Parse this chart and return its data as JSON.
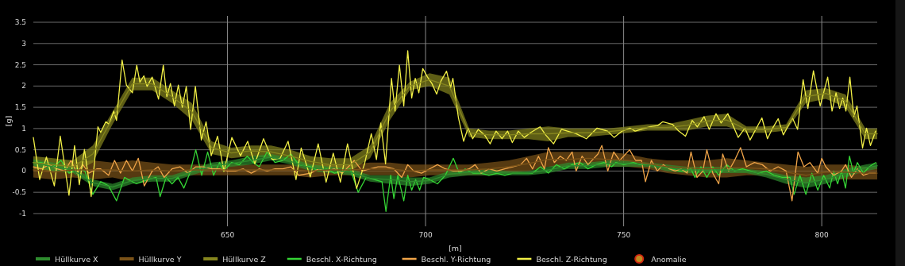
{
  "chart_data": {
    "type": "line",
    "xlabel": "[m]",
    "ylabel": "[g]",
    "xlim": [
      601,
      814
    ],
    "ylim": [
      -1.3,
      3.65
    ],
    "xticks": [
      650,
      700,
      750,
      800
    ],
    "yticks": [
      -1,
      -0.5,
      0,
      0.5,
      1,
      1.5,
      2,
      2.5,
      3,
      3.5
    ],
    "grid": true,
    "legend": "bottom",
    "series": [
      {
        "name": "Hüllkurve X",
        "color": "#2e8b2e",
        "x": [
          601,
          606,
          611,
          616,
          621,
          626,
          631,
          636,
          641,
          646,
          651,
          656,
          661,
          666,
          671,
          676,
          681,
          686,
          691,
          696,
          701,
          706,
          711,
          716,
          721,
          726,
          731,
          736,
          741,
          746,
          751,
          756,
          761,
          766,
          771,
          776,
          781,
          786,
          791,
          796,
          801,
          806,
          811,
          814
        ],
        "values": [
          0.2,
          0.1,
          0.025,
          -0.275,
          -0.375,
          -0.225,
          -0.175,
          -0.175,
          -0.025,
          0.125,
          0.175,
          0.25,
          0.325,
          0.225,
          0.075,
          0.025,
          -0.025,
          -0.175,
          -0.2,
          -0.25,
          -0.225,
          -0.075,
          -0.025,
          -0.025,
          -0.05,
          -0.05,
          0.025,
          0.125,
          0.125,
          0.175,
          0.175,
          0.15,
          0.075,
          0.025,
          0.025,
          0.025,
          0,
          -0.075,
          -0.2,
          -0.275,
          -0.2,
          -0.05,
          0.075,
          0.125
        ],
        "lower": [
          0.12,
          0,
          -0.05,
          -0.35,
          -0.45,
          -0.3,
          -0.25,
          -0.25,
          -0.1,
          0.05,
          0.1,
          0.15,
          0.25,
          0.15,
          0,
          -0.05,
          -0.1,
          -0.25,
          -0.3,
          -0.35,
          -0.3,
          -0.15,
          -0.1,
          -0.1,
          -0.1,
          -0.1,
          -0.05,
          0.05,
          0.05,
          0.1,
          0.1,
          0.1,
          0,
          -0.05,
          -0.05,
          -0.05,
          -0.05,
          -0.15,
          -0.3,
          -0.4,
          -0.3,
          -0.15,
          0,
          0.05
        ],
        "upper": [
          0.28,
          0.2,
          0.1,
          -0.2,
          -0.3,
          -0.15,
          -0.1,
          -0.1,
          0.05,
          0.2,
          0.25,
          0.35,
          0.4,
          0.3,
          0.15,
          0.1,
          0.05,
          -0.1,
          -0.1,
          -0.15,
          -0.15,
          0,
          0.05,
          0.05,
          0,
          0,
          0.1,
          0.2,
          0.2,
          0.25,
          0.25,
          0.2,
          0.15,
          0.1,
          0.1,
          0.1,
          0.05,
          0,
          -0.1,
          -0.15,
          -0.1,
          0.05,
          0.15,
          0.2
        ]
      },
      {
        "name": "Hüllkurve Y",
        "color": "#7a5218",
        "x": [
          601,
          606,
          611,
          616,
          621,
          626,
          631,
          636,
          641,
          646,
          651,
          656,
          661,
          666,
          671,
          676,
          681,
          686,
          691,
          696,
          701,
          706,
          711,
          716,
          721,
          726,
          731,
          736,
          741,
          746,
          751,
          756,
          761,
          766,
          771,
          776,
          781,
          786,
          791,
          796,
          801,
          806,
          811,
          814
        ],
        "values": [
          0.025,
          -0.025,
          0.025,
          0.025,
          0.025,
          0,
          0.025,
          0,
          0.025,
          0.025,
          0.025,
          0.025,
          0.025,
          0.025,
          0,
          0.025,
          0.025,
          0.05,
          0.05,
          0,
          0.025,
          0.025,
          0.025,
          0.05,
          0.1,
          0.175,
          0.275,
          0.275,
          0.3,
          0.275,
          0.25,
          0.175,
          0.1,
          0.075,
          0.05,
          0.075,
          0.075,
          0.05,
          -0.025,
          -0.1,
          -0.025,
          -0.025,
          -0.05,
          -0.05
        ],
        "lower": [
          -0.15,
          -0.2,
          -0.15,
          -0.2,
          -0.15,
          -0.25,
          -0.15,
          -0.15,
          -0.1,
          -0.1,
          -0.1,
          -0.1,
          -0.1,
          -0.1,
          -0.15,
          -0.1,
          -0.1,
          -0.1,
          -0.1,
          -0.15,
          -0.1,
          -0.1,
          -0.1,
          -0.1,
          -0.05,
          0,
          0.1,
          0.1,
          0.15,
          0.1,
          0.1,
          0.05,
          -0.05,
          -0.1,
          -0.15,
          -0.15,
          -0.1,
          -0.1,
          -0.2,
          -0.3,
          -0.2,
          -0.2,
          -0.2,
          -0.2
        ],
        "upper": [
          0.2,
          0.15,
          0.2,
          0.25,
          0.2,
          0.25,
          0.2,
          0.15,
          0.15,
          0.15,
          0.15,
          0.15,
          0.15,
          0.15,
          0.15,
          0.15,
          0.15,
          0.2,
          0.2,
          0.15,
          0.15,
          0.15,
          0.15,
          0.2,
          0.25,
          0.35,
          0.45,
          0.45,
          0.45,
          0.45,
          0.4,
          0.3,
          0.25,
          0.25,
          0.25,
          0.3,
          0.25,
          0.2,
          0.15,
          0.1,
          0.15,
          0.15,
          0.1,
          0.1
        ]
      },
      {
        "name": "Hüllkurve Z",
        "color": "#85851e",
        "x": [
          601,
          606,
          611,
          616,
          621,
          626,
          631,
          636,
          641,
          646,
          651,
          656,
          661,
          666,
          671,
          676,
          681,
          686,
          691,
          696,
          701,
          706,
          711,
          716,
          721,
          726,
          731,
          736,
          741,
          746,
          751,
          756,
          761,
          766,
          771,
          776,
          781,
          786,
          791,
          796,
          801,
          806,
          811,
          814
        ],
        "values": [
          0.2,
          0.15,
          0.1,
          0.4,
          1.25,
          2.05,
          2.05,
          1.75,
          1.4,
          0.55,
          0.425,
          0.475,
          0.45,
          0.35,
          0.225,
          0.15,
          0.15,
          0.45,
          1.4,
          2,
          2.15,
          2,
          0.9,
          0.85,
          0.85,
          0.875,
          0.875,
          0.9,
          0.9,
          0.925,
          0.975,
          1.025,
          1.025,
          1.075,
          1.175,
          1.2,
          0.975,
          0.975,
          1.025,
          1.75,
          1.825,
          1.65,
          0.875,
          0.875
        ],
        "lower": [
          0.05,
          0,
          -0.05,
          0.2,
          1.1,
          1.9,
          1.9,
          1.6,
          1.2,
          0.4,
          0.3,
          0.35,
          0.3,
          0.2,
          0.1,
          0,
          0,
          0.3,
          1.2,
          1.9,
          2,
          1.8,
          0.8,
          0.75,
          0.75,
          0.75,
          0.7,
          0.8,
          0.8,
          0.85,
          0.9,
          0.95,
          0.95,
          0.95,
          1.05,
          1.05,
          0.9,
          0.9,
          0.95,
          1.6,
          1.7,
          1.5,
          0.75,
          0.75
        ],
        "upper": [
          0.35,
          0.3,
          0.25,
          0.6,
          1.4,
          2.2,
          2.2,
          1.9,
          1.6,
          0.7,
          0.55,
          0.6,
          0.6,
          0.5,
          0.35,
          0.3,
          0.3,
          0.6,
          1.6,
          2.1,
          2.3,
          2.2,
          1,
          0.95,
          0.95,
          1,
          1.05,
          1,
          1,
          1,
          1.05,
          1.1,
          1.1,
          1.2,
          1.3,
          1.35,
          1.05,
          1.05,
          1.1,
          1.9,
          1.95,
          1.8,
          1,
          1
        ]
      },
      {
        "name": "Beschl. X-Richtung",
        "color": "#35d535",
        "x": [
          601,
          603,
          606,
          608,
          610,
          612,
          614,
          616,
          618,
          620,
          622,
          624,
          627,
          630,
          632,
          633,
          634.5,
          636,
          637.5,
          639,
          640.5,
          642,
          643.5,
          645,
          646.5,
          648,
          649,
          651,
          653,
          655,
          656.5,
          658,
          660,
          662,
          664,
          666,
          668,
          671,
          673,
          675,
          677,
          679,
          681,
          683,
          685,
          687,
          689,
          690,
          691.2,
          692,
          693,
          694.5,
          695.5,
          696.5,
          697.5,
          698.5,
          699.5,
          701,
          703,
          705,
          707,
          708.5,
          710,
          712,
          714,
          716,
          718,
          720,
          722,
          725,
          727,
          729,
          731,
          733,
          735,
          737,
          739,
          741,
          743,
          745,
          747,
          748,
          750,
          752.5,
          754,
          756,
          758,
          760,
          762,
          764,
          765.6,
          767,
          768,
          769.5,
          771,
          772.5,
          774,
          776,
          778,
          780,
          782,
          784,
          786,
          788,
          790,
          792,
          793,
          794.5,
          796,
          797.5,
          799,
          800.5,
          802,
          803,
          804,
          805,
          806,
          807,
          808,
          809,
          810.5,
          812,
          813.6
        ],
        "values": [
          0.2,
          0.2,
          0.1,
          0.25,
          -0.05,
          0.05,
          0,
          -0.55,
          -0.25,
          -0.35,
          -0.7,
          -0.15,
          -0.3,
          -0.2,
          -0.15,
          -0.6,
          -0.15,
          -0.3,
          -0.15,
          -0.4,
          -0.05,
          0.5,
          -0.1,
          0.45,
          -0.1,
          0.2,
          0,
          0.2,
          0.15,
          0.35,
          0.2,
          0.1,
          0.45,
          0.2,
          0.25,
          0.4,
          0.15,
          0.1,
          0,
          0.05,
          -0.05,
          0,
          0.05,
          -0.5,
          -0.15,
          -0.2,
          -0.25,
          -0.95,
          -0.1,
          -0.65,
          -0.1,
          -0.7,
          -0.1,
          -0.45,
          -0.2,
          -0.45,
          -0.15,
          -0.2,
          -0.3,
          -0.1,
          0.3,
          -0.05,
          0.05,
          -0.05,
          -0.05,
          -0.1,
          -0.05,
          -0.1,
          -0.05,
          -0.05,
          -0.05,
          0.1,
          -0.05,
          0.15,
          0.05,
          0.15,
          0.2,
          0.05,
          0.15,
          0.2,
          0.1,
          0.2,
          0.15,
          0.2,
          0.15,
          0.15,
          0.15,
          0.1,
          0.05,
          0,
          0,
          0.05,
          -0.15,
          0.1,
          -0.15,
          0.1,
          -0.1,
          0.15,
          0,
          0.05,
          0,
          -0.05,
          0,
          -0.1,
          -0.15,
          -0.15,
          -0.55,
          -0.1,
          -0.55,
          -0.05,
          -0.45,
          -0.1,
          -0.4,
          0,
          -0.3,
          0,
          -0.4,
          0.35,
          -0.05,
          0.2,
          -0.05,
          0.1,
          0.2
        ]
      },
      {
        "name": "Beschl. Y-Richtung",
        "color": "#f0a448",
        "x": [
          601,
          603,
          605,
          607,
          609,
          610.5,
          612,
          613.5,
          615,
          617,
          618,
          620,
          621.5,
          623,
          624.5,
          626,
          627.5,
          629,
          631,
          632.5,
          634,
          636,
          638,
          640,
          642,
          644,
          646,
          648,
          650,
          652,
          654,
          656,
          658,
          660,
          662,
          664,
          666,
          668,
          671,
          673,
          675,
          677,
          679,
          682,
          684,
          686,
          688,
          690,
          692,
          694,
          695.5,
          697,
          699,
          701,
          703,
          705,
          707,
          709,
          711,
          712.5,
          714,
          716,
          718,
          720,
          722,
          724,
          725.5,
          727,
          728.5,
          730,
          731,
          732.5,
          734,
          735.5,
          737,
          738,
          739.5,
          741,
          742.5,
          743.5,
          744.5,
          746,
          747.5,
          749,
          751.5,
          753,
          754.5,
          755.5,
          757,
          758.5,
          760,
          761.5,
          763,
          764.5,
          766,
          767,
          768.5,
          770,
          771,
          772.5,
          774,
          775,
          776.5,
          778,
          779.5,
          781,
          783,
          785,
          787,
          789,
          791,
          792.5,
          794,
          795.5,
          797,
          799,
          800,
          801,
          803,
          805,
          806,
          807.5,
          809,
          810.5,
          812,
          813.6
        ],
        "values": [
          0.1,
          0.05,
          0.15,
          0.05,
          0,
          0.25,
          -0.05,
          0.15,
          -0.05,
          0.05,
          0.05,
          -0.1,
          0.25,
          -0.05,
          0.25,
          0,
          0.3,
          -0.35,
          0,
          0.1,
          -0.15,
          0.05,
          0.1,
          -0.05,
          0.1,
          0.1,
          0.05,
          0.05,
          0,
          0,
          0.05,
          -0.05,
          0.05,
          0,
          0.05,
          0.05,
          0.1,
          -0.1,
          -0.05,
          0.05,
          0,
          0.05,
          -0.05,
          0.25,
          0,
          0.05,
          0.1,
          0.1,
          0.05,
          -0.15,
          0.15,
          0,
          -0.05,
          0.05,
          0.15,
          0.05,
          0,
          0,
          0.05,
          0.15,
          -0.05,
          0.05,
          0,
          0.05,
          0.1,
          0.15,
          0.3,
          0.05,
          0.35,
          0.05,
          0.55,
          0.2,
          0.35,
          0.25,
          0.45,
          0,
          0.35,
          0.15,
          0.3,
          0.4,
          0.6,
          0,
          0.45,
          0.25,
          0.5,
          0.25,
          0.25,
          -0.25,
          0.25,
          0,
          0.15,
          0.05,
          0,
          0.05,
          -0.05,
          0.45,
          -0.15,
          0,
          0.5,
          -0.05,
          -0.3,
          0.4,
          0,
          0.25,
          0.55,
          0.1,
          0.2,
          0.15,
          0,
          0.1,
          0,
          -0.7,
          0.45,
          0.1,
          0.2,
          -0.05,
          0.3,
          0.1,
          -0.1,
          0,
          0.15,
          -0.15,
          0.05,
          -0.1,
          -0.05,
          -0.05
        ]
      },
      {
        "name": "Beschl. Z-Richtung",
        "color": "#f2f046",
        "x": [
          601,
          602.6,
          604.3,
          606.3,
          607.8,
          610,
          611.4,
          612.6,
          613.9,
          615.6,
          617.3,
          618,
          619.3,
          620.1,
          621.3,
          622,
          623.4,
          624.5,
          626,
          627.1,
          627.9,
          628.9,
          629.7,
          631,
          632.6,
          633.8,
          634.7,
          635.6,
          636.6,
          637.6,
          638.6,
          639.6,
          640.7,
          641.9,
          643.4,
          644.6,
          645.9,
          647.5,
          649.1,
          651.1,
          653.3,
          655.1,
          656.9,
          659.1,
          661.3,
          663.3,
          665.3,
          667.3,
          668.6,
          670.9,
          672.9,
          674.9,
          676.7,
          678.5,
          680.3,
          682.6,
          684.6,
          686.3,
          687.6,
          688.7,
          689.9,
          691.4,
          692.3,
          693.4,
          694.5,
          695.5,
          696.5,
          697.4,
          698.3,
          699.3,
          700.5,
          701.6,
          702.8,
          703.9,
          705.3,
          706.3,
          706.9,
          708.3,
          709.6,
          710.7,
          711.9,
          713.3,
          714.9,
          716.3,
          717.8,
          719.3,
          720.7,
          721.9,
          723.4,
          724.9,
          726.6,
          728.9,
          730.3,
          732.3,
          734.3,
          738,
          740.6,
          743.3,
          745.9,
          747.6,
          749.6,
          751.6,
          752.9,
          756.6,
          758.6,
          759.9,
          762.3,
          763.9,
          765.6,
          767.3,
          768.6,
          770.3,
          771.6,
          773.3,
          774.6,
          776.3,
          778.9,
          780.6,
          781.9,
          784.9,
          786.3,
          787.6,
          789,
          790.3,
          792.6,
          793.9,
          795.3,
          796.5,
          797.9,
          799.6,
          801.5,
          802.6,
          803.6,
          804.5,
          805.3,
          806.1,
          807.1,
          808.1,
          808.9,
          810.3,
          811.3,
          812.3,
          813.6
        ],
        "values": [
          0.79,
          -0.2,
          0.33,
          -0.35,
          0.82,
          -0.57,
          0.6,
          -0.32,
          0.51,
          -0.6,
          1.04,
          0.91,
          1.16,
          1.1,
          1.41,
          1.19,
          2.61,
          2.02,
          1.84,
          2.49,
          2.09,
          2.24,
          1.99,
          2.21,
          1.69,
          2.49,
          1.75,
          2.06,
          1.53,
          2.02,
          1.5,
          1.99,
          0.98,
          1.99,
          0.73,
          1.16,
          0.36,
          0.82,
          -0.01,
          0.79,
          0.36,
          0.7,
          0.17,
          0.76,
          0.27,
          0.3,
          0.7,
          -0.2,
          0.54,
          -0.14,
          0.64,
          -0.26,
          0.42,
          -0.26,
          0.64,
          -0.41,
          0.17,
          0.88,
          0.27,
          1.13,
          0.17,
          2.18,
          1.41,
          2.49,
          1.53,
          2.83,
          1.72,
          2.18,
          1.84,
          2.41,
          2.21,
          2.06,
          1.81,
          2.12,
          2.35,
          1.96,
          2.18,
          1.25,
          0.7,
          1.01,
          0.76,
          0.98,
          0.85,
          0.64,
          0.94,
          0.76,
          0.94,
          0.67,
          0.94,
          0.79,
          0.91,
          1.04,
          0.85,
          0.64,
          0.98,
          0.88,
          0.76,
          1.01,
          0.94,
          0.79,
          0.94,
          1.01,
          0.94,
          1.04,
          1.07,
          1.16,
          1.1,
          0.94,
          0.82,
          1.19,
          1.04,
          1.28,
          0.98,
          1.35,
          1.13,
          1.35,
          0.79,
          1.01,
          0.73,
          1.25,
          0.76,
          1.01,
          1.23,
          0.85,
          1.25,
          0.98,
          2.15,
          1.47,
          2.36,
          1.53,
          2.21,
          1.41,
          1.84,
          1.47,
          1.72,
          1.41,
          2.21,
          1.28,
          1.53,
          0.54,
          1.01,
          0.6,
          0.94
        ]
      },
      {
        "name": "Anomalie",
        "type": "scatter",
        "color": "#c08a20",
        "marker": "circle"
      }
    ]
  }
}
